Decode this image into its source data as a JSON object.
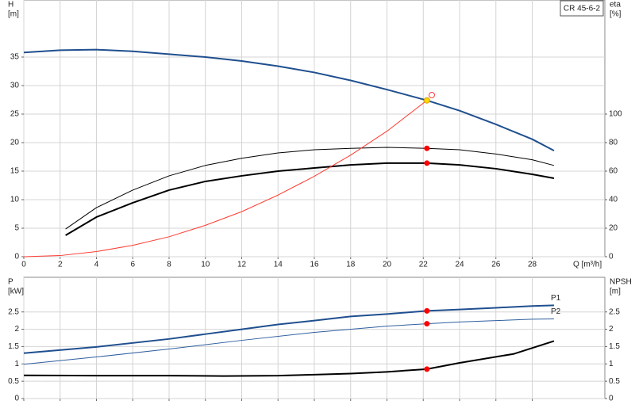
{
  "chart_data": [
    {
      "type": "line",
      "title": "CR 45-6-2",
      "x_label": "Q [m³/h]",
      "y_label": "H",
      "y_unit": "[m]",
      "y2_label": "eta",
      "y2_unit": "[%]",
      "xlim": [
        0,
        32
      ],
      "xticks": [
        0,
        2,
        4,
        6,
        8,
        10,
        12,
        14,
        16,
        18,
        20,
        22,
        24,
        26,
        28
      ],
      "show_xtick_labels": true,
      "ylim": [
        0,
        45
      ],
      "yticks": [
        0,
        5,
        10,
        15,
        20,
        25,
        30,
        35
      ],
      "y2lim": [
        0,
        180
      ],
      "y2ticks": [
        0,
        20,
        40,
        60,
        80,
        100
      ],
      "grid": true,
      "series": [
        {
          "color": "#1f4f8f",
          "width": 2,
          "axis": "y",
          "x": [
            0,
            2,
            4,
            6,
            8,
            10,
            12,
            14,
            16,
            18,
            20,
            22.2,
            24,
            26,
            28,
            29.2
          ],
          "values": [
            35.8,
            36.2,
            36.3,
            36,
            35.5,
            35,
            34.3,
            33.4,
            32.3,
            30.9,
            29.3,
            27.4,
            25.6,
            23.2,
            20.6,
            18.6
          ]
        },
        {
          "color": "#000000",
          "width": 1,
          "axis": "y2",
          "x": [
            2.3,
            4,
            6,
            8,
            10,
            12,
            14,
            16,
            18,
            20,
            22.2,
            24,
            26,
            28,
            29.2
          ],
          "values": [
            19.4,
            34.4,
            46.7,
            56.7,
            64,
            69,
            72.8,
            75,
            76,
            76.7,
            76,
            75,
            72,
            68,
            64
          ]
        },
        {
          "color": "#000000",
          "width": 2,
          "axis": "y2",
          "x": [
            2.3,
            4,
            6,
            8,
            10,
            12,
            14,
            16,
            18,
            20,
            22.2,
            24,
            26,
            28,
            29.2
          ],
          "values": [
            15,
            27.8,
            37.8,
            46.7,
            52.8,
            56.7,
            60,
            62.2,
            64.4,
            65.6,
            65.6,
            64.4,
            61.7,
            57.8,
            55
          ]
        },
        {
          "color": "#ff3b30",
          "width": 1,
          "axis": "y",
          "x": [
            0,
            2,
            4,
            6,
            8,
            10,
            12,
            14,
            16,
            18,
            20,
            22.2
          ],
          "values": [
            0,
            0.2,
            0.9,
            2,
            3.5,
            5.5,
            7.9,
            10.8,
            14.1,
            17.8,
            22,
            27.4
          ]
        }
      ],
      "points": [
        {
          "x": 22.2,
          "value": 76,
          "axis": "y2",
          "color": "#ff0000"
        },
        {
          "x": 22.2,
          "value": 65.6,
          "axis": "y2",
          "color": "#ff0000"
        },
        {
          "x": 22.2,
          "value": 27.4,
          "axis": "y",
          "color": "#ffd700"
        }
      ]
    },
    {
      "type": "line",
      "y_label": "P",
      "y_unit": "[kW]",
      "y2_label": "NPSH",
      "y2_unit": "[m]",
      "xlim": [
        0,
        32
      ],
      "xticks": [
        0,
        2,
        4,
        6,
        8,
        10,
        12,
        14,
        16,
        18,
        20,
        22,
        24,
        26,
        28
      ],
      "show_xtick_labels": false,
      "ylim": [
        0,
        3.5
      ],
      "yticks": [
        0,
        0.5,
        1.0,
        1.5,
        2.0,
        2.5
      ],
      "y2lim": [
        0,
        3.5
      ],
      "y2ticks": [
        0,
        0.5,
        1.0,
        1.5,
        2.0,
        2.5
      ],
      "grid": true,
      "series": [
        {
          "name": "P1",
          "color": "#1f4f8f",
          "width": 2,
          "axis": "y",
          "x": [
            0,
            4,
            8,
            10,
            12,
            14,
            16,
            18,
            20,
            22.2,
            24,
            26,
            28,
            29.2
          ],
          "values": [
            1.31,
            1.49,
            1.72,
            1.86,
            2.0,
            2.14,
            2.25,
            2.37,
            2.44,
            2.53,
            2.57,
            2.62,
            2.67,
            2.69
          ]
        },
        {
          "name": "P2",
          "color": "#2f5f9f",
          "width": 1,
          "axis": "y",
          "x": [
            0,
            4,
            8,
            12,
            16,
            20,
            22.2,
            24,
            26,
            28,
            29.2
          ],
          "values": [
            0.99,
            1.2,
            1.43,
            1.68,
            1.91,
            2.09,
            2.16,
            2.21,
            2.25,
            2.29,
            2.3
          ]
        },
        {
          "color": "#000000",
          "width": 2,
          "axis": "y2",
          "x": [
            0,
            4,
            8,
            11,
            14,
            16,
            18,
            20,
            22.2,
            24,
            27,
            29.2
          ],
          "values": [
            0.67,
            0.66,
            0.66,
            0.65,
            0.66,
            0.69,
            0.72,
            0.77,
            0.85,
            1.03,
            1.29,
            1.66
          ]
        }
      ],
      "points": [
        {
          "x": 22.2,
          "value": 2.53,
          "axis": "y",
          "color": "#ff0000"
        },
        {
          "x": 22.2,
          "value": 2.16,
          "axis": "y",
          "color": "#ff0000"
        },
        {
          "x": 22.2,
          "value": 0.85,
          "axis": "y2",
          "color": "#ff0000"
        }
      ]
    }
  ]
}
